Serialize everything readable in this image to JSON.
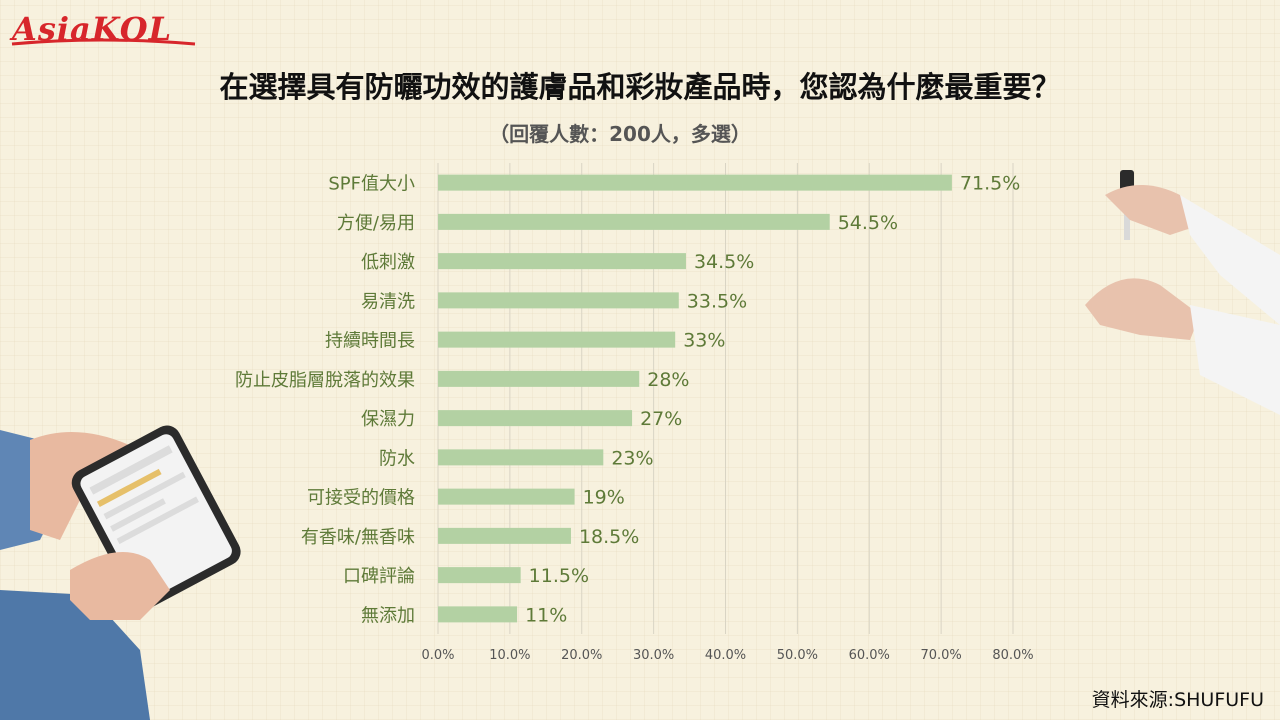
{
  "logo": {
    "text": "AsiaKOL"
  },
  "header": {
    "title": "在選擇具有防曬功效的護膚品和彩妝產品時，您認為什麼最重要？",
    "subtitle": "（回覆人數：200人，多選）"
  },
  "source": "資料來源:SHUFUFU",
  "colors": {
    "bar": "#b3d1a3",
    "value_label": "#5e7a38",
    "category_label": "#5e7a38",
    "axis_label": "#555555",
    "logo": "#d7262b"
  },
  "chart_data": {
    "type": "bar",
    "orientation": "horizontal",
    "categories": [
      "SPF值大小",
      "方便/易用",
      "低刺激",
      "易清洗",
      "持續時間長",
      "防止皮脂層脫落的效果",
      "保濕力",
      "防水",
      "可接受的價格",
      "有香味/無香味",
      "口碑評論",
      "無添加"
    ],
    "values": [
      71.5,
      54.5,
      34.5,
      33.5,
      33,
      28,
      27,
      23,
      19,
      18.5,
      11.5,
      11
    ],
    "value_labels": [
      "71.5%",
      "54.5%",
      "34.5%",
      "33.5%",
      "33%",
      "28%",
      "27%",
      "23%",
      "19%",
      "18.5%",
      "11.5%",
      "11%"
    ],
    "xlim": [
      0,
      80
    ],
    "ticks": [
      0,
      10,
      20,
      30,
      40,
      50,
      60,
      70,
      80
    ],
    "tick_labels": [
      "0.0%",
      "10.0%",
      "20.0%",
      "30.0%",
      "40.0%",
      "50.0%",
      "60.0%",
      "70.0%",
      "80.0%"
    ],
    "grid": true,
    "unit": "%"
  },
  "decorations": {
    "left_image": "hands-holding-smartphone",
    "right_image": "hands-with-dropper"
  }
}
